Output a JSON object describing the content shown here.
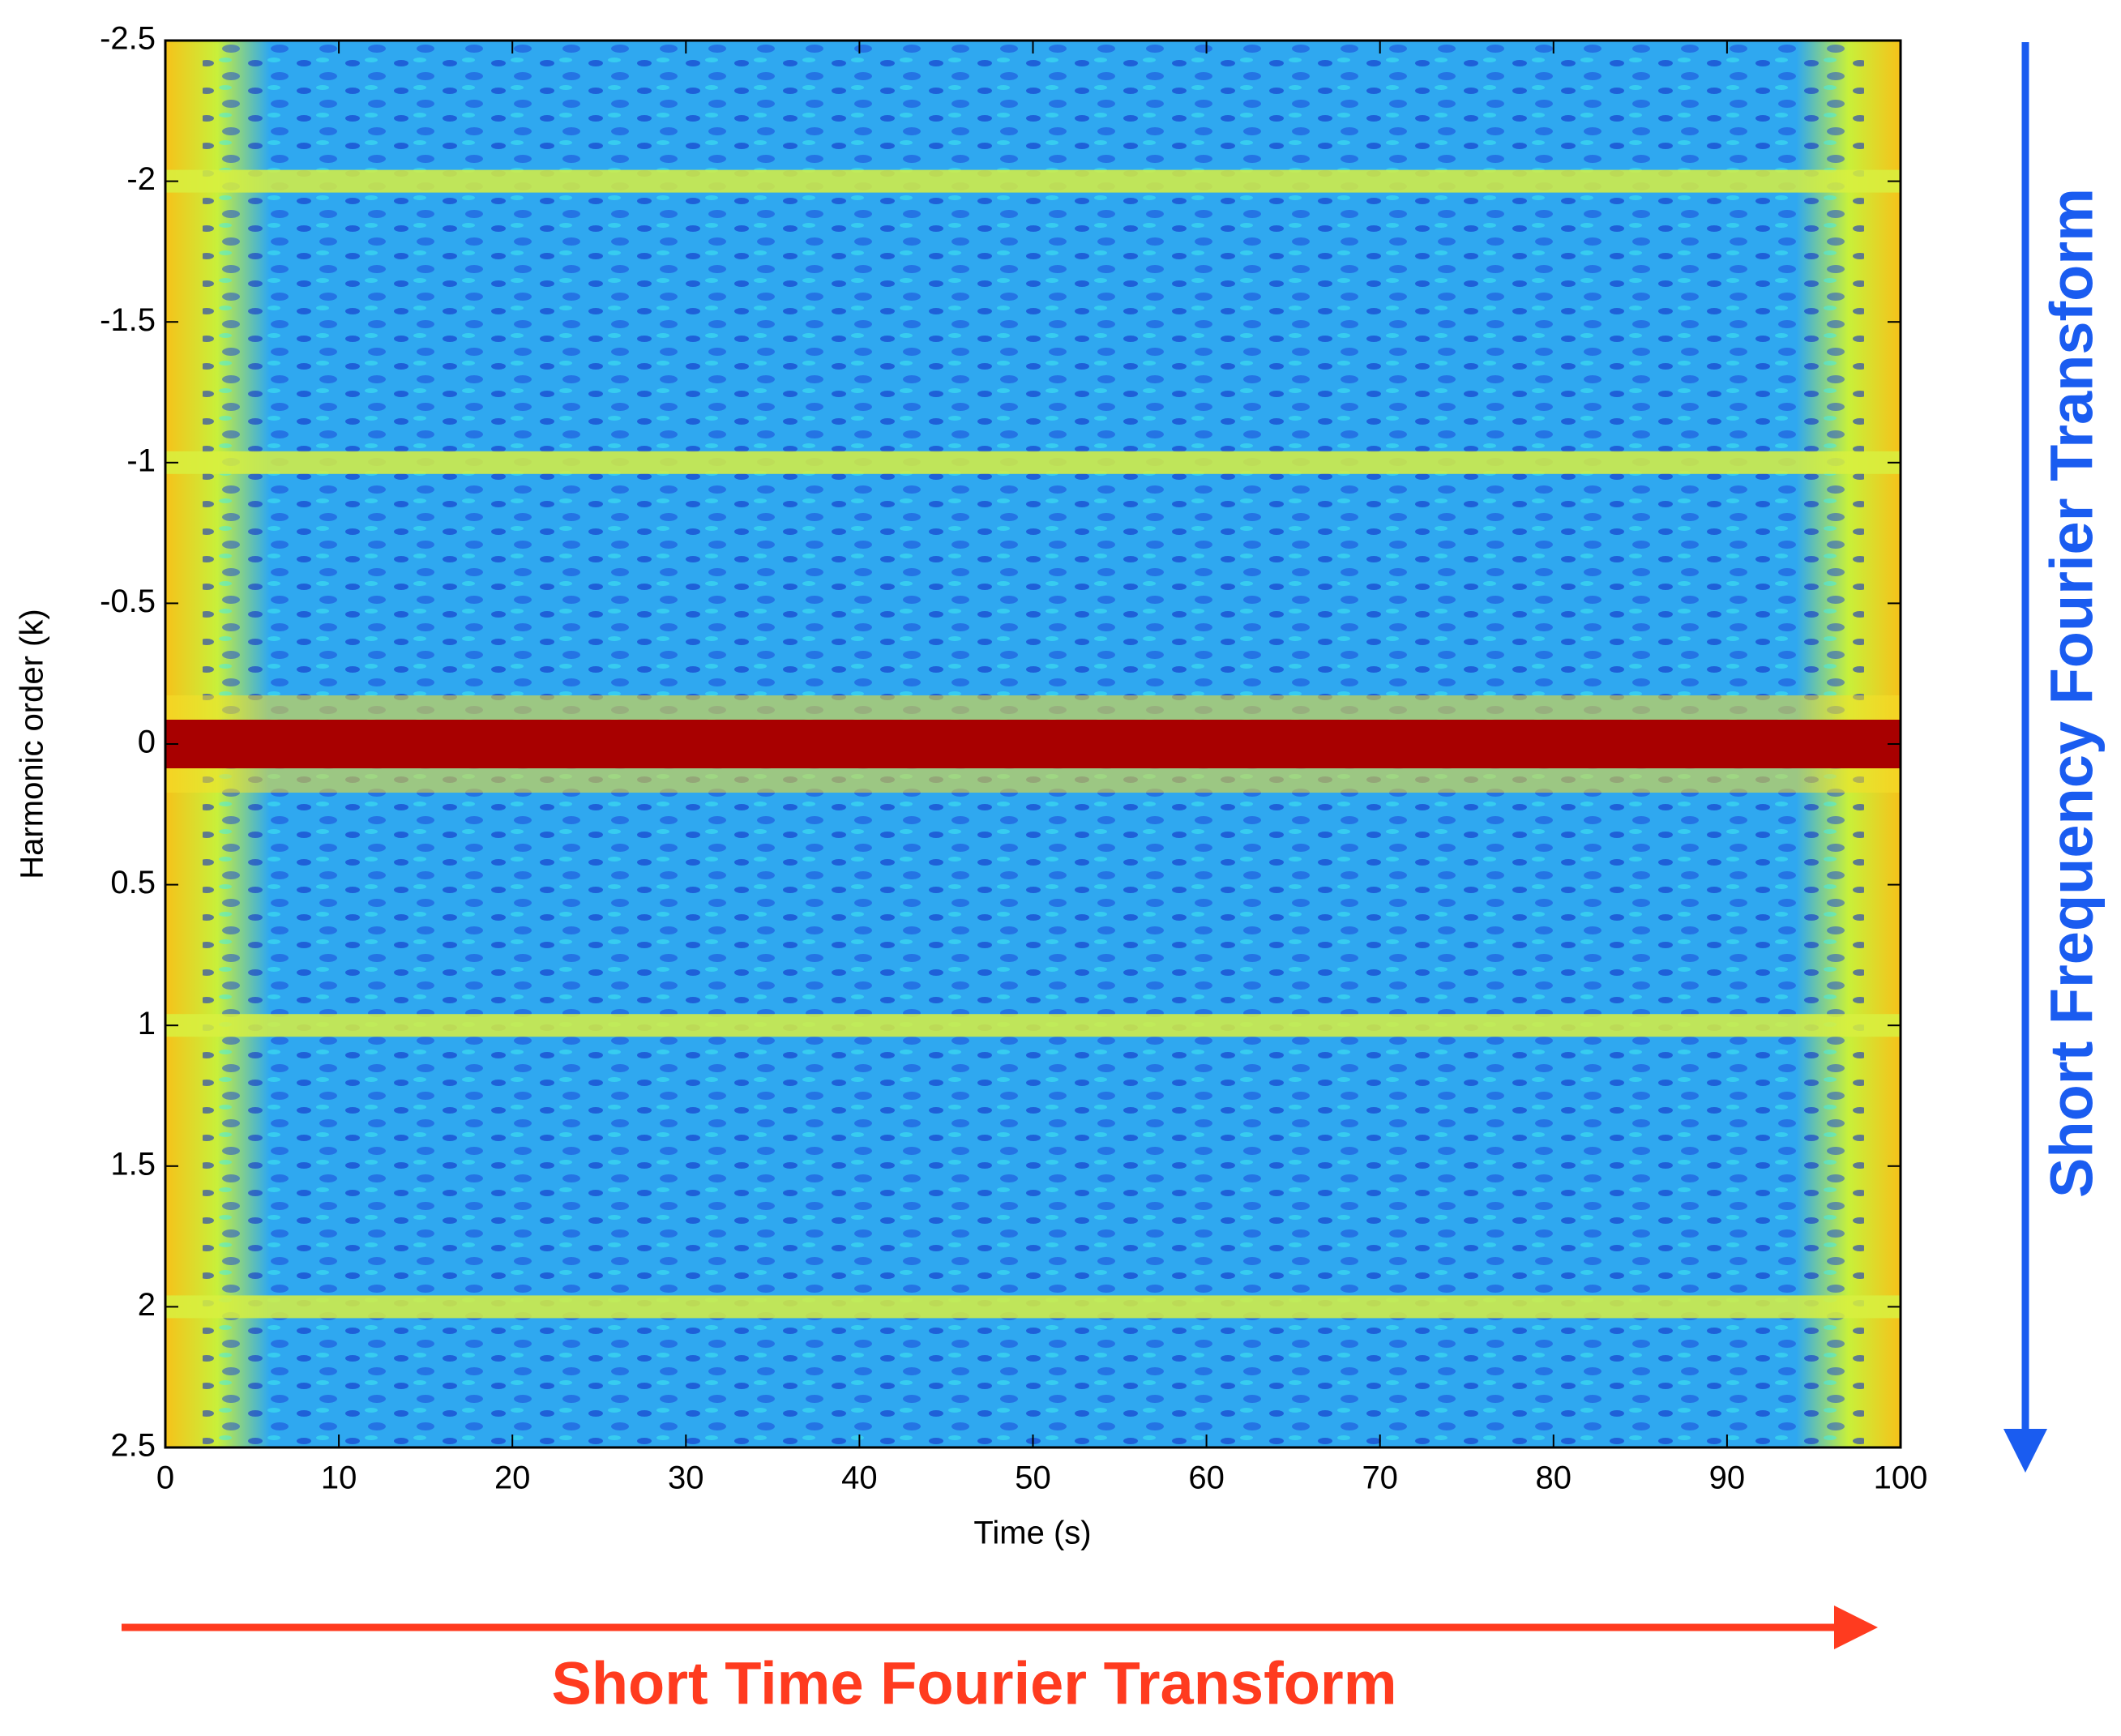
{
  "chart_data": {
    "type": "heatmap",
    "xlabel": "Time (s)",
    "ylabel": "Harmonic order (k)",
    "xlim": [
      0,
      100
    ],
    "xticks": [
      0,
      10,
      20,
      30,
      40,
      50,
      60,
      70,
      80,
      90,
      100
    ],
    "ylim": [
      -2.5,
      2.5
    ],
    "y_reversed": true,
    "yticks": [
      -2.5,
      -2,
      -1.5,
      -1,
      -0.5,
      0,
      0.5,
      1,
      1.5,
      2,
      2.5
    ],
    "annotations": [
      {
        "text": "Short Time Fourier Transform",
        "color": "#ff3b1f",
        "direction": "horizontal"
      },
      {
        "text": "Short Frequency Fourier Transform",
        "color": "#1a5cf0",
        "direction": "vertical"
      }
    ]
  }
}
